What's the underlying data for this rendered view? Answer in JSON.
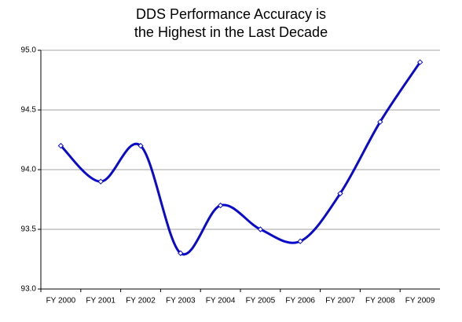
{
  "chart_data": {
    "type": "line",
    "title": [
      "DDS Performance Accuracy is",
      "the Highest in the Last Decade"
    ],
    "categories": [
      "FY 2000",
      "FY 2001",
      "FY 2002",
      "FY 2003",
      "FY 2004",
      "FY 2005",
      "FY 2006",
      "FY 2007",
      "FY 2008",
      "FY 2009"
    ],
    "values": [
      94.2,
      93.9,
      94.2,
      93.3,
      93.7,
      93.5,
      93.4,
      93.8,
      94.4,
      94.9
    ],
    "color": "#0a0acc",
    "smooth": true,
    "ylim": [
      93,
      95
    ],
    "yticks": [
      {
        "value": 93,
        "label": "93.0"
      },
      {
        "value": 93.5,
        "label": "93.5"
      },
      {
        "value": 94,
        "label": "94.0"
      },
      {
        "value": 94.5,
        "label": "94.5"
      },
      {
        "value": 95,
        "label": "95.0"
      }
    ],
    "grid": true
  }
}
